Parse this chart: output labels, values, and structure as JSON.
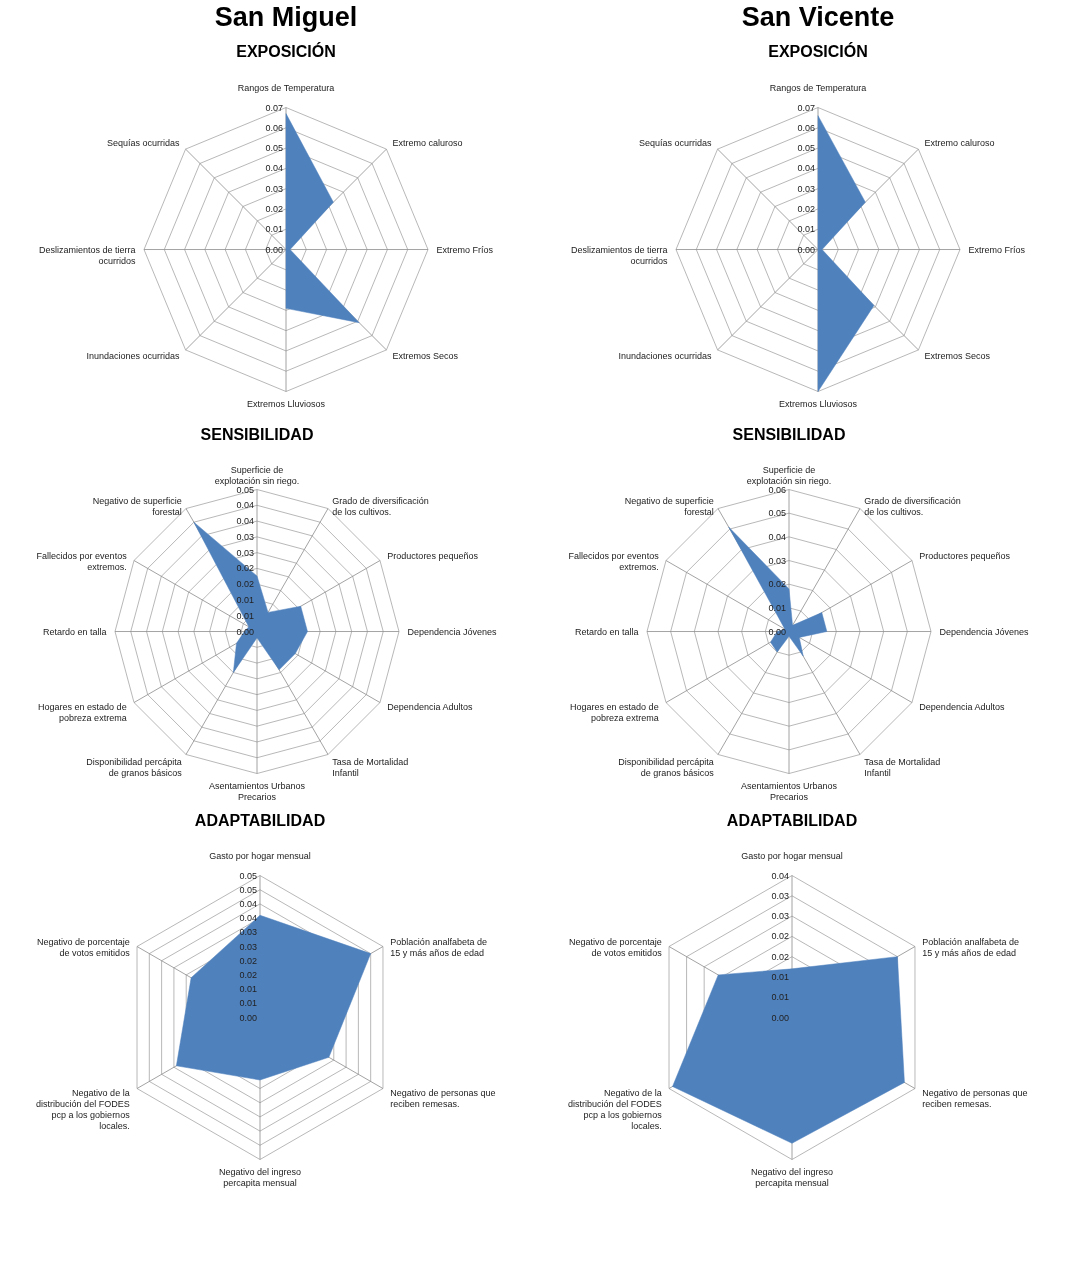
{
  "chart_data": [
    {
      "type": "radar",
      "title": "San Miguel",
      "subtitle": "EXPOSICIÓN",
      "categories": [
        "Rangos de Temperatura",
        "Extremo caluroso",
        "Extremo Fríos",
        "Extremos Secos",
        "Extremos Lluviosos",
        "Inundaciones ocurridas",
        "Deslizamientos de tierra ocurridos",
        "Sequías ocurridas"
      ],
      "series": [
        {
          "color": "#4f81bd",
          "values": [
            0.067,
            0.033,
            0.002,
            0.051,
            0.029,
            0,
            0,
            0
          ]
        }
      ],
      "ylim": [
        0,
        0.07
      ],
      "yticks": [
        {
          "value": 0,
          "label": "0.00"
        },
        {
          "value": 0.01,
          "label": "0.01"
        },
        {
          "value": 0.02,
          "label": "0.02"
        },
        {
          "value": 0.03,
          "label": "0.03"
        },
        {
          "value": 0.04,
          "label": "0.04"
        },
        {
          "value": 0.05,
          "label": "0.05"
        },
        {
          "value": 0.06,
          "label": "0.06"
        },
        {
          "value": 0.07,
          "label": "0.07"
        }
      ]
    },
    {
      "type": "radar",
      "title": "San Vicente",
      "subtitle": "EXPOSICIÓN",
      "categories": [
        "Rangos de Temperatura",
        "Extremo caluroso",
        "Extremo Fríos",
        "Extremos Secos",
        "Extremos Lluviosos",
        "Inundaciones ocurridas",
        "Deslizamientos de tierra ocurridos",
        "Sequías ocurridas"
      ],
      "series": [
        {
          "color": "#4f81bd",
          "values": [
            0.066,
            0.033,
            0.002,
            0.039,
            0.07,
            0,
            0,
            0
          ]
        }
      ],
      "ylim": [
        0,
        0.07
      ],
      "yticks": [
        {
          "value": 0,
          "label": "0.00"
        },
        {
          "value": 0.01,
          "label": "0.01"
        },
        {
          "value": 0.02,
          "label": "0.02"
        },
        {
          "value": 0.03,
          "label": "0.03"
        },
        {
          "value": 0.04,
          "label": "0.04"
        },
        {
          "value": 0.05,
          "label": "0.05"
        },
        {
          "value": 0.06,
          "label": "0.06"
        },
        {
          "value": 0.07,
          "label": "0.07"
        }
      ]
    },
    {
      "type": "radar",
      "title": "SENSIBILIDAD",
      "categories": [
        "Superficie de explotación sin riego.",
        "Grado de diversificación de los cultivos.",
        "Productores pequeños",
        "Dependencia Jóvenes",
        "Dependencia Adultos",
        "Tasa de Mortalidad Infantil",
        "Asentamientos Urbanos Precarios",
        "Disponibilidad percápita de granos básicos",
        "Hogares en estado de pobreza extrema",
        "Retardo en talla",
        "Fallecidos por eventos extremos.",
        "Negativo de superficie forestal"
      ],
      "series": [
        {
          "color": "#4f81bd",
          "values": [
            0.0176,
            0.007,
            0.016,
            0.016,
            0.014,
            0.014,
            0.002,
            0.015,
            0.0075,
            0.004,
            0.003,
            0.04
          ]
        }
      ],
      "ylim": [
        0,
        0.045
      ],
      "yticks": [
        {
          "value": 0,
          "label": "0.00"
        },
        {
          "value": 0.005,
          "label": "0.01"
        },
        {
          "value": 0.01,
          "label": "0.01"
        },
        {
          "value": 0.015,
          "label": "0.02"
        },
        {
          "value": 0.02,
          "label": "0.02"
        },
        {
          "value": 0.025,
          "label": "0.03"
        },
        {
          "value": 0.03,
          "label": "0.03"
        },
        {
          "value": 0.035,
          "label": "0.04"
        },
        {
          "value": 0.04,
          "label": "0.04"
        },
        {
          "value": 0.045,
          "label": "0.05"
        }
      ]
    },
    {
      "type": "radar",
      "title": "SENSIBILIDAD",
      "categories": [
        "Superficie de explotación sin riego.",
        "Grado de diversificación de los cultivos.",
        "Productores pequeños",
        "Dependencia Jóvenes",
        "Dependencia Adultos",
        "Tasa de Mortalidad Infantil",
        "Asentamientos Urbanos Precarios",
        "Disponibilidad percápita de granos básicos",
        "Hogares en estado de pobreza extrema",
        "Retardo en talla",
        "Fallecidos por eventos extremos.",
        "Negativo de superficie forestal"
      ],
      "series": [
        {
          "color": "#4f81bd",
          "values": [
            0.018,
            0.003,
            0.016,
            0.016,
            0.005,
            0.012,
            0.002,
            0.01,
            0.009,
            0.005,
            0.002,
            0.051
          ]
        }
      ],
      "ylim": [
        0,
        0.06
      ],
      "yticks": [
        {
          "value": 0,
          "label": "0.00"
        },
        {
          "value": 0.01,
          "label": "0.01"
        },
        {
          "value": 0.02,
          "label": "0.02"
        },
        {
          "value": 0.03,
          "label": "0.03"
        },
        {
          "value": 0.04,
          "label": "0.04"
        },
        {
          "value": 0.05,
          "label": "0.05"
        },
        {
          "value": 0.06,
          "label": "0.06"
        }
      ]
    },
    {
      "type": "radar",
      "title": "ADAPTABILIDAD",
      "categories": [
        "Gasto por hogar mensual",
        "Población analfabeta de 15 y más años de edad",
        "Negativo de personas que reciben remesas.",
        "Negativo del ingreso percapita mensual",
        "Negativo de la distribución del FODES pcp a los gobiernos locales.",
        "Negativo de porcentaje de votos emitidos"
      ],
      "series": [
        {
          "color": "#4f81bd",
          "values": [
            0.036,
            0.045,
            0.028,
            0.022,
            0.034,
            0.028
          ]
        }
      ],
      "ylim": [
        0,
        0.05
      ],
      "yticks": [
        {
          "value": 0,
          "label": "0.00"
        },
        {
          "value": 0.005,
          "label": "0.01"
        },
        {
          "value": 0.01,
          "label": "0.01"
        },
        {
          "value": 0.015,
          "label": "0.02"
        },
        {
          "value": 0.02,
          "label": "0.02"
        },
        {
          "value": 0.025,
          "label": "0.03"
        },
        {
          "value": 0.03,
          "label": "0.03"
        },
        {
          "value": 0.035,
          "label": "0.04"
        },
        {
          "value": 0.04,
          "label": "0.04"
        },
        {
          "value": 0.045,
          "label": "0.05"
        },
        {
          "value": 0.05,
          "label": "0.05"
        }
      ]
    },
    {
      "type": "radar",
      "title": "ADAPTABILIDAD",
      "categories": [
        "Gasto por hogar mensual",
        "Población analfabeta de 15 y más años de edad",
        "Negativo de personas que reciben remesas.",
        "Negativo del ingreso percapita mensual",
        "Negativo de la distribución del FODES pcp a los gobiernos locales.",
        "Negativo de porcentaje de votos emitidos"
      ],
      "series": [
        {
          "color": "#4f81bd",
          "values": [
            0.012,
            0.03,
            0.032,
            0.031,
            0.034,
            0.021
          ]
        }
      ],
      "ylim": [
        0,
        0.035
      ],
      "yticks": [
        {
          "value": 0,
          "label": "0.00"
        },
        {
          "value": 0.005,
          "label": "0.01"
        },
        {
          "value": 0.01,
          "label": "0.01"
        },
        {
          "value": 0.015,
          "label": "0.02"
        },
        {
          "value": 0.02,
          "label": "0.02"
        },
        {
          "value": 0.025,
          "label": "0.03"
        },
        {
          "value": 0.03,
          "label": "0.03"
        },
        {
          "value": 0.035,
          "label": "0.04"
        }
      ]
    }
  ]
}
